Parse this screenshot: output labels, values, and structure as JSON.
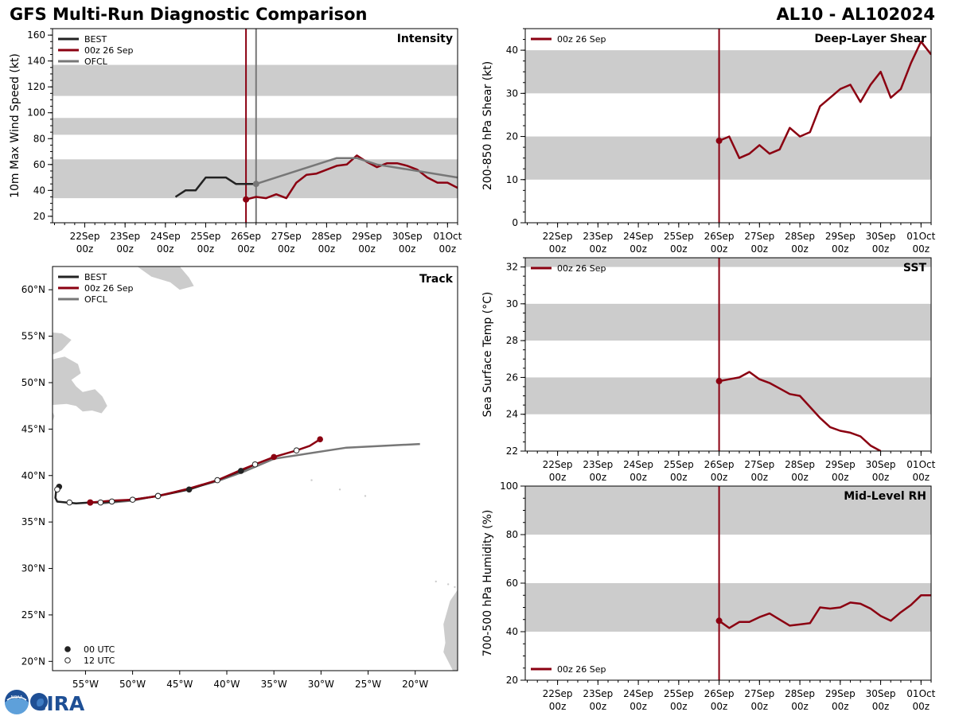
{
  "header": {
    "title": "GFS Multi-Run Diagnostic Comparison",
    "storm_id": "AL10 - AL102024"
  },
  "logo": {
    "noaa_text": "NOAA",
    "cira_text": "CIRA"
  },
  "colors": {
    "best": "#222222",
    "run": "#8b0011",
    "ofcl": "#777777",
    "band": "#cccccc",
    "land": "#cccccc"
  },
  "time_axis": {
    "labels": [
      {
        "day": "22Sep",
        "hour": "00z"
      },
      {
        "day": "23Sep",
        "hour": "00z"
      },
      {
        "day": "24Sep",
        "hour": "00z"
      },
      {
        "day": "25Sep",
        "hour": "00z"
      },
      {
        "day": "26Sep",
        "hour": "00z"
      },
      {
        "day": "27Sep",
        "hour": "00z"
      },
      {
        "day": "28Sep",
        "hour": "00z"
      },
      {
        "day": "29Sep",
        "hour": "00z"
      },
      {
        "day": "30Sep",
        "hour": "00z"
      },
      {
        "day": "01Oct",
        "hour": "00z"
      }
    ],
    "xlim": [
      -4.8,
      5.25
    ],
    "vline": 0,
    "ofcl_vline": 0.25
  },
  "chart_data": [
    {
      "id": "intensity",
      "type": "line",
      "title": "Intensity",
      "ylabel": "10m Max Wind Speed (kt)",
      "ylim": [
        15,
        165
      ],
      "yticks": [
        20,
        40,
        60,
        80,
        100,
        120,
        140,
        160
      ],
      "bands": [
        [
          34,
          64
        ],
        [
          83,
          96
        ],
        [
          113,
          137
        ]
      ],
      "legend": [
        {
          "label": "BEST",
          "key": "best"
        },
        {
          "label": "00z 26 Sep",
          "key": "run"
        },
        {
          "label": "OFCL",
          "key": "ofcl"
        }
      ],
      "series": [
        {
          "name": "BEST",
          "key": "best",
          "x": [
            -1.75,
            -1.5,
            -1.25,
            -1.0,
            -0.75,
            -0.5,
            -0.25,
            0.0,
            0.25
          ],
          "y": [
            35,
            40,
            40,
            50,
            50,
            50,
            45,
            45,
            45
          ]
        },
        {
          "name": "00z 26 Sep",
          "key": "run",
          "x": [
            0,
            0.25,
            0.5,
            0.75,
            1.0,
            1.25,
            1.5,
            1.75,
            2.0,
            2.25,
            2.5,
            2.75,
            3.0,
            3.25,
            3.5,
            3.75,
            4.0,
            4.25,
            4.5,
            4.75,
            5.0,
            5.25
          ],
          "y": [
            33,
            35,
            34,
            37,
            34,
            46,
            52,
            53,
            56,
            59,
            60,
            67,
            62,
            58,
            61,
            61,
            59,
            56,
            50,
            46,
            46,
            42
          ],
          "start_marker": true
        },
        {
          "name": "OFCL",
          "key": "ofcl",
          "x": [
            0.25,
            0.75,
            1.25,
            2.25,
            2.75,
            3.25,
            4.25,
            5.25
          ],
          "y": [
            45,
            50,
            55,
            65,
            65,
            60,
            55,
            50
          ],
          "start_marker": true
        }
      ]
    },
    {
      "id": "shear",
      "type": "line",
      "title": "Deep-Layer Shear",
      "ylabel": "200-850 hPa Shear (kt)",
      "ylim": [
        0,
        45
      ],
      "yticks": [
        0,
        10,
        20,
        30,
        40
      ],
      "bands": [
        [
          10,
          20
        ],
        [
          30,
          40
        ]
      ],
      "legend": [
        {
          "label": "00z 26 Sep",
          "key": "run"
        }
      ],
      "series": [
        {
          "name": "00z 26 Sep",
          "key": "run",
          "x": [
            0,
            0.25,
            0.5,
            0.75,
            1.0,
            1.25,
            1.5,
            1.75,
            2.0,
            2.25,
            2.5,
            2.75,
            3.0,
            3.25,
            3.5,
            3.75,
            4.0,
            4.25,
            4.5,
            4.75,
            5.0,
            5.25
          ],
          "y": [
            19,
            20,
            15,
            16,
            18,
            16,
            17,
            22,
            20,
            21,
            27,
            29,
            31,
            32,
            28,
            32,
            35,
            29,
            31,
            37,
            42,
            39
          ],
          "start_marker": true
        }
      ]
    },
    {
      "id": "sst",
      "type": "line",
      "title": "SST",
      "ylabel": "Sea Surface Temp (°C)",
      "ylim": [
        22,
        32.5
      ],
      "yticks": [
        22,
        24,
        26,
        28,
        30,
        32
      ],
      "bands": [
        [
          24,
          26
        ],
        [
          28,
          30
        ],
        [
          32,
          34
        ]
      ],
      "legend": [
        {
          "label": "00z 26 Sep",
          "key": "run"
        }
      ],
      "series": [
        {
          "name": "00z 26 Sep",
          "key": "run",
          "x": [
            0,
            0.25,
            0.5,
            0.75,
            1.0,
            1.25,
            1.5,
            1.75,
            2.0,
            2.25,
            2.5,
            2.75,
            3.0,
            3.25,
            3.5,
            3.75,
            4.0
          ],
          "y": [
            25.8,
            25.9,
            26.0,
            26.3,
            25.9,
            25.7,
            25.4,
            25.1,
            25.0,
            24.4,
            23.8,
            23.3,
            23.1,
            23.0,
            22.8,
            22.3,
            22.0
          ],
          "start_marker": true
        }
      ]
    },
    {
      "id": "rh",
      "type": "line",
      "title": "Mid-Level RH",
      "ylabel": "700-500 hPa Humidity (%)",
      "ylim": [
        20,
        100
      ],
      "yticks": [
        20,
        40,
        60,
        80,
        100
      ],
      "bands": [
        [
          40,
          60
        ],
        [
          80,
          100
        ]
      ],
      "legend": [
        {
          "label": "00z 26 Sep",
          "key": "run"
        }
      ],
      "legend_loc": "lower-left",
      "series": [
        {
          "name": "00z 26 Sep",
          "key": "run",
          "x": [
            0,
            0.25,
            0.5,
            0.75,
            1.0,
            1.25,
            1.5,
            1.75,
            2.0,
            2.25,
            2.5,
            2.75,
            3.0,
            3.25,
            3.5,
            3.75,
            4.0,
            4.25,
            4.5,
            4.75,
            5.0,
            5.25
          ],
          "y": [
            44.5,
            41.5,
            44,
            44,
            46,
            47.5,
            45,
            42.5,
            43,
            43.5,
            50,
            49.5,
            50,
            52,
            51.5,
            49.5,
            46.5,
            44.5,
            48,
            51,
            55,
            55
          ],
          "start_marker": true
        }
      ]
    },
    {
      "id": "track",
      "type": "scatter",
      "title": "Track",
      "xlim": [
        -58.5,
        -15.5
      ],
      "ylim": [
        19,
        62.5
      ],
      "lon_ticks": [
        -55,
        -50,
        -45,
        -40,
        -35,
        -30,
        -25,
        -20
      ],
      "lon_labels": [
        "55°W",
        "50°W",
        "45°W",
        "40°W",
        "35°W",
        "30°W",
        "25°W",
        "20°W"
      ],
      "lat_ticks": [
        20,
        25,
        30,
        35,
        40,
        45,
        50,
        55,
        60
      ],
      "lat_labels": [
        "20°N",
        "25°N",
        "30°N",
        "35°N",
        "40°N",
        "45°N",
        "50°N",
        "55°N",
        "60°N"
      ],
      "legend": [
        {
          "label": "BEST",
          "key": "best"
        },
        {
          "label": "00z 26 Sep",
          "key": "run"
        },
        {
          "label": "OFCL",
          "key": "ofcl"
        }
      ],
      "marker_legend": [
        {
          "label": "00 UTC",
          "fill": "filled"
        },
        {
          "label": "12 UTC",
          "fill": "open"
        }
      ],
      "best": {
        "lon": [
          -57.8,
          -58.1,
          -58.2,
          -58.0,
          -57.0,
          -56.0,
          -54.5,
          -53.3,
          -52.2,
          -50.0,
          -47.3,
          -44.0,
          -41.0,
          -38.5,
          -37.0
        ],
        "lat": [
          38.8,
          38.5,
          37.6,
          37.2,
          37.1,
          37.0,
          37.1,
          37.1,
          37.2,
          37.4,
          37.8,
          38.5,
          39.5,
          40.5,
          41.2
        ],
        "pts": [
          {
            "lon": -57.8,
            "lat": 38.8,
            "t": "00"
          },
          {
            "lon": -58.0,
            "lat": 38.5,
            "t": "12"
          },
          {
            "lon": -56.7,
            "lat": 37.1,
            "t": "12"
          },
          {
            "lon": -53.4,
            "lat": 37.1,
            "t": "12"
          },
          {
            "lon": -50.0,
            "lat": 37.4,
            "t": "12"
          },
          {
            "lon": -47.3,
            "lat": 37.8,
            "t": "12"
          },
          {
            "lon": -44.0,
            "lat": 38.5,
            "t": "00"
          },
          {
            "lon": -38.5,
            "lat": 40.5,
            "t": "00"
          }
        ]
      },
      "run": {
        "lon": [
          -54.5,
          -53.3,
          -52.2,
          -50.0,
          -47.3,
          -44.0,
          -41.0,
          -38.5,
          -37.0,
          -35.0,
          -32.6,
          -31.2,
          -30.1
        ],
        "lat": [
          37.1,
          37.2,
          37.3,
          37.4,
          37.8,
          38.6,
          39.5,
          40.6,
          41.2,
          42.0,
          42.7,
          43.2,
          43.9
        ],
        "pts": [
          {
            "lon": -52.2,
            "lat": 37.2,
            "t": "12"
          },
          {
            "lon": -47.3,
            "lat": 37.8,
            "t": "12"
          },
          {
            "lon": -41.0,
            "lat": 39.5,
            "t": "12"
          },
          {
            "lon": -37.0,
            "lat": 41.2,
            "t": "12"
          },
          {
            "lon": -35.0,
            "lat": 42.0,
            "t": "00"
          },
          {
            "lon": -32.6,
            "lat": 42.7,
            "t": "12"
          },
          {
            "lon": -30.1,
            "lat": 43.9,
            "t": "00"
          }
        ],
        "start": {
          "lon": -54.5,
          "lat": 37.1
        }
      },
      "ofcl": {
        "lon": [
          -53.4,
          -50.0,
          -45.0,
          -41.0,
          -38.0,
          -35.0,
          -27.3,
          -19.5
        ],
        "lat": [
          37.0,
          37.3,
          38.3,
          39.4,
          40.5,
          41.8,
          43.0,
          43.4
        ]
      }
    }
  ]
}
